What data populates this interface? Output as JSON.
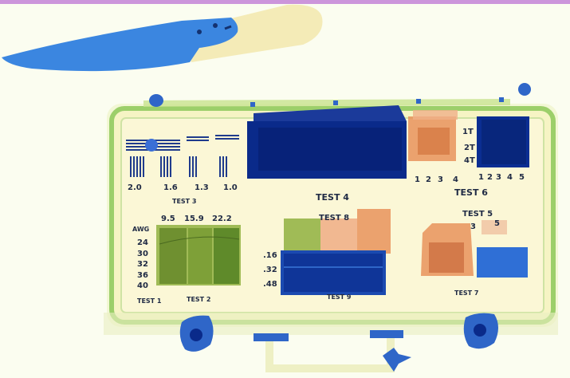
{
  "colors": {
    "background": "#fbfdf0",
    "organic_orange": "#e8935c",
    "metal_blue": "#0a2a8a",
    "inorganic_green": "#8fb040",
    "case_frame": "#9ccf6a"
  },
  "tests": {
    "test1": {
      "label": "TEST 1",
      "awg_title": "AWG",
      "awg_values": [
        "24",
        "30",
        "32",
        "36",
        "40"
      ]
    },
    "test2": {
      "label": "TEST 2",
      "values": [
        "9.5",
        "15.9",
        "22.2"
      ]
    },
    "test3": {
      "label": "TEST 3",
      "values": [
        "2.0",
        "1.6",
        "1.3",
        "1.0"
      ]
    },
    "test4": {
      "label": "TEST 4"
    },
    "test5": {
      "label": "TEST 5",
      "values": [
        "3",
        "5"
      ]
    },
    "test6": {
      "label": "TEST 6",
      "steps_left": [
        "1",
        "2",
        "3",
        "4"
      ],
      "steps_right": [
        "1",
        "2",
        "3",
        "4",
        "5"
      ],
      "thickness": [
        "1T",
        "2T",
        "4T"
      ]
    },
    "test7": {
      "label": "TEST 7"
    },
    "test8": {
      "label": "TEST 8"
    },
    "test9": {
      "label": "TEST 9",
      "values": [
        ".16",
        ".32",
        ".48"
      ]
    }
  }
}
